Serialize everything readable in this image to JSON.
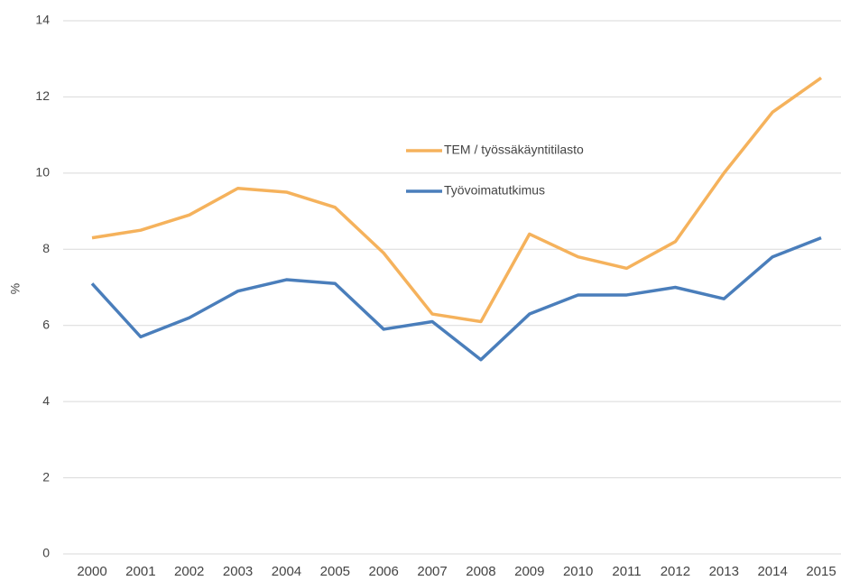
{
  "chart_data": {
    "type": "line",
    "ylabel": "%",
    "categories": [
      "2000",
      "2001",
      "2002",
      "2003",
      "2004",
      "2005",
      "2006",
      "2007",
      "2008",
      "2009",
      "2010",
      "2011",
      "2012",
      "2013",
      "2014",
      "2015"
    ],
    "series": [
      {
        "name": "TEM / työssäkäyntitilasto",
        "color": "#f5b25c",
        "values": [
          8.3,
          8.5,
          8.9,
          9.6,
          9.5,
          9.1,
          7.9,
          6.3,
          6.1,
          8.4,
          7.8,
          7.5,
          8.2,
          10.0,
          11.6,
          12.5
        ]
      },
      {
        "name": "Työvoimatutkimus",
        "color": "#4a7ebb",
        "values": [
          7.1,
          5.7,
          6.2,
          6.9,
          7.2,
          7.1,
          5.9,
          6.1,
          5.1,
          6.3,
          6.8,
          6.8,
          7.0,
          6.7,
          7.8,
          8.3
        ]
      }
    ],
    "ylim": [
      0,
      14
    ],
    "yticks": [
      0,
      2,
      4,
      6,
      8,
      10,
      12,
      14
    ],
    "grid": true
  }
}
